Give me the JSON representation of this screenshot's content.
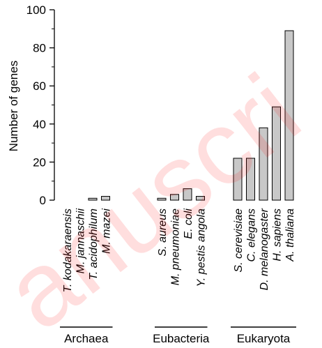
{
  "chart_data": {
    "type": "bar",
    "ylabel": "Number of genes",
    "ylim": [
      0,
      100
    ],
    "yticks": [
      0,
      20,
      40,
      60,
      80,
      100
    ],
    "bar_color": "#c8c8c8",
    "groups": [
      {
        "name": "Archaea",
        "categories": [
          "T. kodakaraensis",
          "M. jannaschii",
          "T. acidophilum",
          "M. mazei"
        ],
        "values": [
          0,
          0,
          1,
          2
        ]
      },
      {
        "name": "Eubacteria",
        "categories": [
          "S. aureus",
          "M. pneumoniae",
          "E. coli",
          "Y. pestis angola"
        ],
        "values": [
          1,
          3,
          6,
          2
        ]
      },
      {
        "name": "Eukaryota",
        "categories": [
          "S. cerevisiae",
          "C. elegans",
          "D. melanogaster",
          "H. sapiens",
          "A. thaliana"
        ],
        "values": [
          22,
          22,
          38,
          49,
          89
        ]
      }
    ],
    "grid": false,
    "legend": "none"
  },
  "watermark": {
    "text": "anuscri",
    "color": "#ff0000"
  }
}
